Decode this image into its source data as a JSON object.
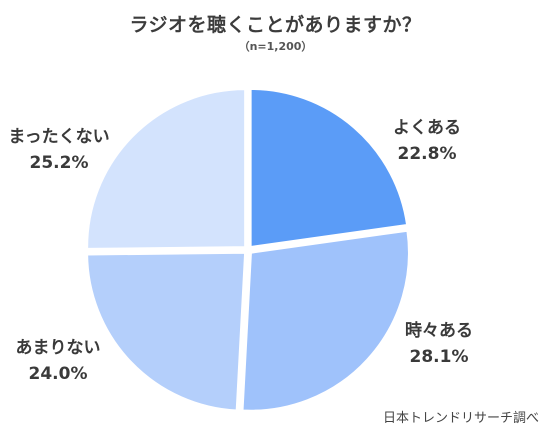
{
  "chart_data": {
    "type": "pie",
    "title": "ラジオを聴くことがありますか？",
    "subtitle": "（n=1,200）",
    "categories": [
      "よくある",
      "時々ある",
      "あまりない",
      "まったくない"
    ],
    "values": [
      22.8,
      28.1,
      24.0,
      25.2
    ],
    "value_labels": [
      "22.8%",
      "28.1%",
      "24.0%",
      "25.2%"
    ],
    "colors": [
      "#5b9cf7",
      "#9fc2fb",
      "#b4cffb",
      "#d3e3fd"
    ],
    "start_angle": "12 o'clock",
    "direction": "clockwise",
    "explode": "slight"
  },
  "source": "日本トレンドリサーチ調べ"
}
